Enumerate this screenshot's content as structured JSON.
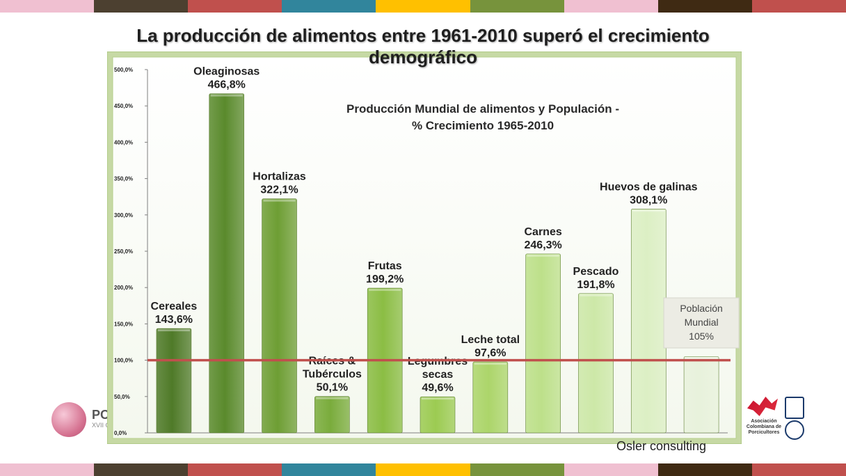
{
  "stripe_colors": [
    "#f0c0d1",
    "#4c4030",
    "#c0504d",
    "#31859c",
    "#ffc000",
    "#77933c",
    "#f0c0d1",
    "#3f2a13",
    "#c0504d"
  ],
  "slide": {
    "title": "La producción de alimentos entre 1961-2010 superó el crecimiento demográfico",
    "credit": "Osler consulting"
  },
  "logos": {
    "left_text": "POR",
    "left_subtext": "XVII C"
  },
  "chart_data": {
    "type": "bar",
    "title": "Producción Mundial de alimentos y Populación - % Crecimiento 1965-2010",
    "title_lines": [
      "Producción Mundial de alimentos y Populación -",
      "% Crecimiento 1965-2010"
    ],
    "xlabel": "",
    "ylabel": "",
    "ylim": [
      0,
      500
    ],
    "yticks": [
      "0,0%",
      "50,0%",
      "100,0%",
      "150,0%",
      "200,0%",
      "250,0%",
      "300,0%",
      "350,0%",
      "400,0%",
      "450,0%",
      "500,0%"
    ],
    "grid": false,
    "categories": [
      "Cereales",
      "Oleaginosas",
      "Hortalizas",
      "Raíces & Tubérculos",
      "Frutas",
      "Legumbres secas",
      "Leche total",
      "Carnes",
      "Pescado",
      "Huevos de galinas",
      ""
    ],
    "values": [
      143.6,
      466.8,
      322.1,
      50.1,
      199.2,
      49.6,
      97.6,
      246.3,
      191.8,
      308.1,
      105
    ],
    "bar_labels": [
      [
        "Cereales",
        "143,6%"
      ],
      [
        "Oleaginosas",
        "466,8%"
      ],
      [
        "Hortalizas",
        "322,1%"
      ],
      [
        "Raíces &",
        "Tubérculos",
        "50,1%"
      ],
      [
        "Frutas",
        "199,2%"
      ],
      [
        "Legumbres",
        "secas",
        "49,6%"
      ],
      [
        "Leche total",
        "97,6%"
      ],
      [
        "Carnes",
        "246,3%"
      ],
      [
        "Pescado",
        "191,8%"
      ],
      [
        "Huevos de galinas",
        "308,1%"
      ],
      []
    ],
    "bar_colors": [
      "#4f7a28",
      "#5a8a2c",
      "#6e9e34",
      "#7aac3c",
      "#8bbd44",
      "#9ccb52",
      "#acd56a",
      "#bde08a",
      "#cde8a8",
      "#dcefc4",
      "#e8f2dc"
    ],
    "reference_line": {
      "value": 100,
      "color": "#c0504d"
    },
    "population_note": {
      "lines": [
        "Población",
        "Mundial",
        "105%"
      ]
    }
  }
}
